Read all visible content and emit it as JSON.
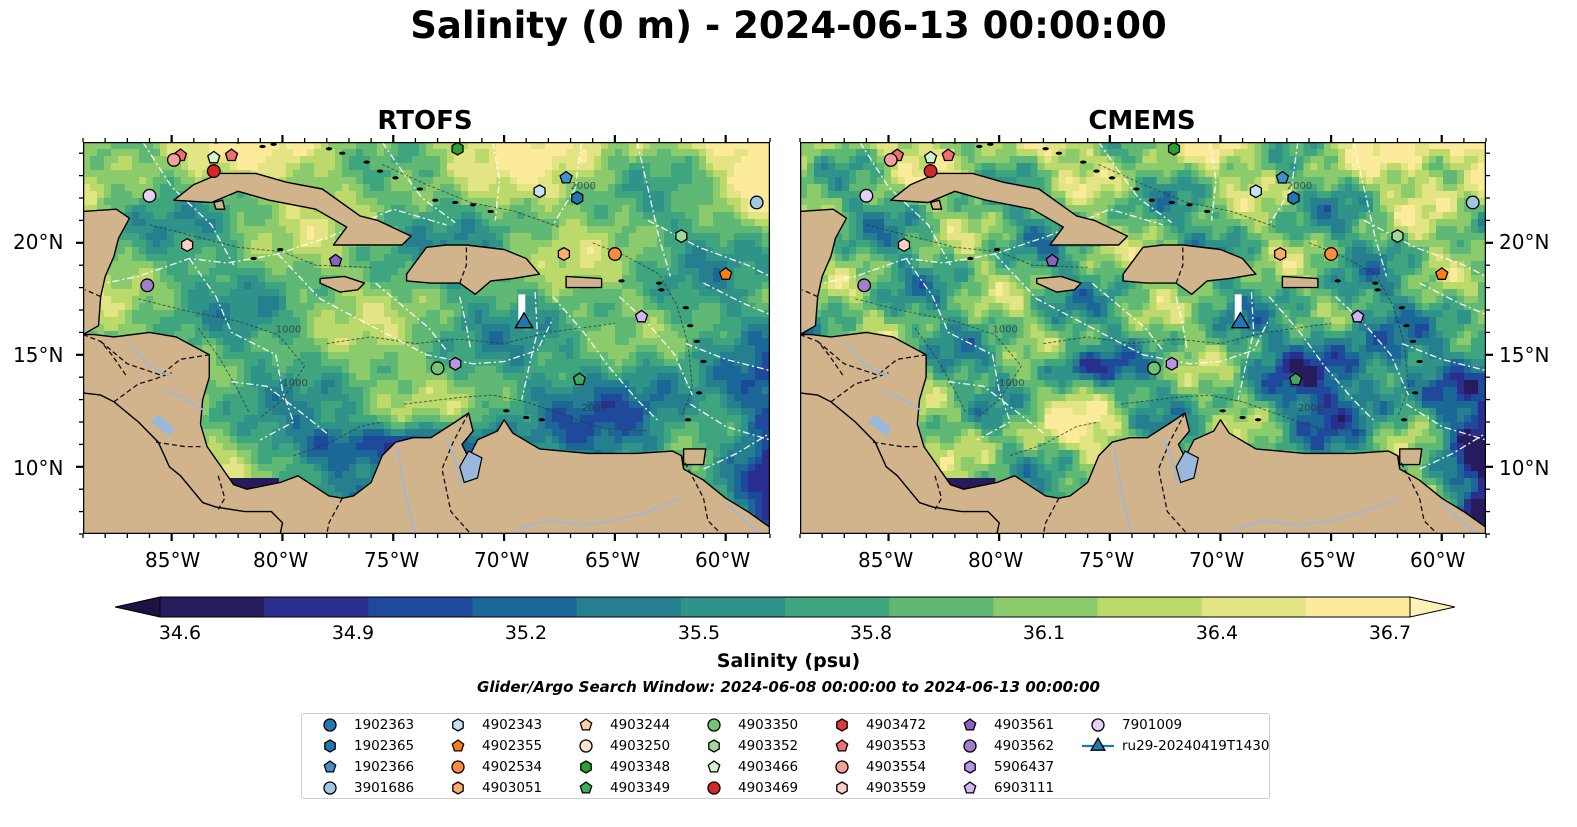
{
  "title": "Salinity (0 m) - 2024-06-13 00:00:00",
  "panels": [
    {
      "title": "RTOFS",
      "variant": "rtofs"
    },
    {
      "title": "CMEMS",
      "variant": "cmems"
    }
  ],
  "lon_ticks": [
    "85°W",
    "80°W",
    "75°W",
    "70°W",
    "65°W",
    "60°W"
  ],
  "lat_ticks": [
    "20°N",
    "15°N",
    "10°N"
  ],
  "colors": {
    "land": "#d2b48c",
    "lakes": "#9ab8de",
    "colormap": [
      "#271c5b",
      "#2a2f8f",
      "#1f4a9c",
      "#1b6797",
      "#257f8f",
      "#2f938a",
      "#3fa57e",
      "#5fb874",
      "#8ccb6c",
      "#bcd96b",
      "#e3e585",
      "#fbeb9a"
    ]
  },
  "colorbar": {
    "label": "Salinity (psu)",
    "ticks": [
      "34.6",
      "34.9",
      "35.2",
      "35.5",
      "35.8",
      "36.1",
      "36.4",
      "36.7"
    ],
    "range": [
      34.6,
      36.7
    ]
  },
  "search_window": "Glider/Argo Search Window: 2024-06-08 00:00:00 to 2024-06-13 00:00:00",
  "contour_labels": [
    "1000",
    "2000",
    "1000",
    "2000"
  ],
  "legend": [
    {
      "id": "1902363",
      "shape": "circle",
      "color": "#1f77b4"
    },
    {
      "id": "1902365",
      "shape": "hexagon",
      "color": "#1f77b4"
    },
    {
      "id": "1902366",
      "shape": "pentagon",
      "color": "#3e8fce"
    },
    {
      "id": "3901686",
      "shape": "circle",
      "color": "#9ecae1"
    },
    {
      "id": "4902343",
      "shape": "hexagon",
      "color": "#c6e2f5"
    },
    {
      "id": "4902355",
      "shape": "pentagon",
      "color": "#ff7f0e"
    },
    {
      "id": "4902534",
      "shape": "circle",
      "color": "#fd8d3c"
    },
    {
      "id": "4903051",
      "shape": "hexagon",
      "color": "#fdae6b"
    },
    {
      "id": "4903244",
      "shape": "pentagon",
      "color": "#fdd0a2"
    },
    {
      "id": "4903250",
      "shape": "circle",
      "color": "#fee6ce"
    },
    {
      "id": "4903348",
      "shape": "hexagon",
      "color": "#2ca02c"
    },
    {
      "id": "4903349",
      "shape": "pentagon",
      "color": "#41ab5d"
    },
    {
      "id": "4903350",
      "shape": "circle",
      "color": "#74c476"
    },
    {
      "id": "4903352",
      "shape": "hexagon",
      "color": "#a1d99b"
    },
    {
      "id": "4903466",
      "shape": "pentagon",
      "color": "#d4f4cf"
    },
    {
      "id": "4903469",
      "shape": "circle",
      "color": "#d62728"
    },
    {
      "id": "4903472",
      "shape": "hexagon",
      "color": "#e03a3a"
    },
    {
      "id": "4903553",
      "shape": "pentagon",
      "color": "#f07070"
    },
    {
      "id": "4903554",
      "shape": "circle",
      "color": "#f4a09a"
    },
    {
      "id": "4903559",
      "shape": "hexagon",
      "color": "#fcd0c8"
    },
    {
      "id": "4903561",
      "shape": "pentagon",
      "color": "#8c5fc2"
    },
    {
      "id": "4903562",
      "shape": "circle",
      "color": "#a07ed0"
    },
    {
      "id": "5906437",
      "shape": "hexagon",
      "color": "#b795e6"
    },
    {
      "id": "6903111",
      "shape": "pentagon",
      "color": "#d7b5f5"
    },
    {
      "id": "7901009",
      "shape": "circle",
      "color": "#e8cff8"
    },
    {
      "id": "ru29-20240419T1430",
      "shape": "triangle",
      "color": "#1f77b4"
    }
  ],
  "markers": [
    {
      "id": "4903553",
      "lon": -84.6,
      "lat": 23.9
    },
    {
      "id": "4903554",
      "lon": -84.9,
      "lat": 23.7
    },
    {
      "id": "4903466",
      "lon": -83.1,
      "lat": 23.8
    },
    {
      "id": "4903553",
      "lon": -82.3,
      "lat": 23.9
    },
    {
      "id": "4903469",
      "lon": -83.1,
      "lat": 23.2
    },
    {
      "id": "7901009",
      "lon": -86.0,
      "lat": 22.1
    },
    {
      "id": "4903559",
      "lon": -84.3,
      "lat": 19.9
    },
    {
      "id": "4903562",
      "lon": -86.1,
      "lat": 18.1
    },
    {
      "id": "4903561",
      "lon": -77.6,
      "lat": 19.2
    },
    {
      "id": "4903348",
      "lon": -72.1,
      "lat": 24.2
    },
    {
      "id": "4902343",
      "lon": -68.4,
      "lat": 22.3
    },
    {
      "id": "1902366",
      "lon": -67.2,
      "lat": 22.9
    },
    {
      "id": "1902365",
      "lon": -66.7,
      "lat": 22.0
    },
    {
      "id": "4903051",
      "lon": -67.3,
      "lat": 19.5
    },
    {
      "id": "4902534",
      "lon": -65.0,
      "lat": 19.5
    },
    {
      "id": "4903352",
      "lon": -62.0,
      "lat": 20.3
    },
    {
      "id": "4902355",
      "lon": -60.0,
      "lat": 18.6
    },
    {
      "id": "3901686",
      "lon": -58.6,
      "lat": 21.8
    },
    {
      "id": "6903111",
      "lon": -63.8,
      "lat": 16.7
    },
    {
      "id": "4903350",
      "lon": -73.0,
      "lat": 14.4
    },
    {
      "id": "5906437",
      "lon": -72.2,
      "lat": 14.6
    },
    {
      "id": "4903349",
      "lon": -66.6,
      "lat": 13.9
    },
    {
      "id": "ru29-20240419T1430",
      "lon": -69.1,
      "lat": 16.5
    }
  ]
}
